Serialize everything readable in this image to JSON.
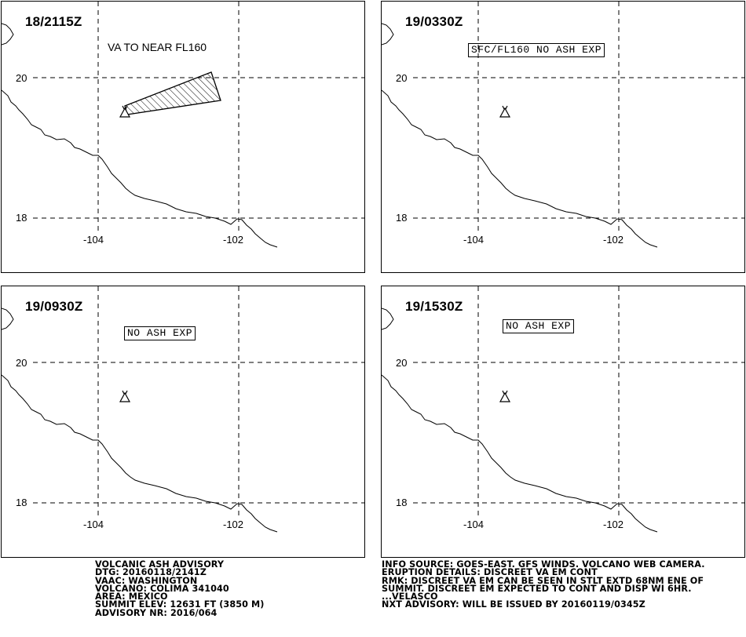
{
  "panels": [
    {
      "time": "18/2115Z",
      "note": "VA TO NEAR FL160",
      "note_boxed": false,
      "has_ash_area": true
    },
    {
      "time": "19/0330Z",
      "note": "SFC/FL160 NO ASH EXP",
      "note_boxed": true,
      "has_ash_area": false
    },
    {
      "time": "19/0930Z",
      "note": "NO ASH EXP",
      "note_boxed": true,
      "has_ash_area": false
    },
    {
      "time": "19/1530Z",
      "note": "NO ASH EXP",
      "note_boxed": true,
      "has_ash_area": false
    }
  ],
  "grid": {
    "lat_labels": [
      "20",
      "18"
    ],
    "lon_labels": [
      "-104",
      "-102"
    ]
  },
  "volcano_icon": "volcano-triangle-icon",
  "advisory_left": [
    "VOLCANIC ASH ADVISORY",
    "DTG: 20160118/2141Z",
    "VAAC: WASHINGTON",
    "VOLCANO: COLIMA 341040",
    "AREA: MEXICO",
    "SUMMIT ELEV: 12631 FT (3850 M)",
    "ADVISORY NR: 2016/064"
  ],
  "advisory_right": [
    "INFO SOURCE: GOES-EAST. GFS WINDS. VOLCANO WEB CAMERA.",
    "ERUPTION DETAILS: DISCREET VA EM CONT",
    "RMK: DISCREET VA EM CAN BE SEEN IN STLT EXTD 68NM ENE OF",
    "SUMMIT. DISCREET EM EXPECTED TO CONT AND DISP WI 6HR.",
    "...VELASCO",
    "NXT ADVISORY: WILL BE ISSUED BY 20160119/0345Z"
  ]
}
